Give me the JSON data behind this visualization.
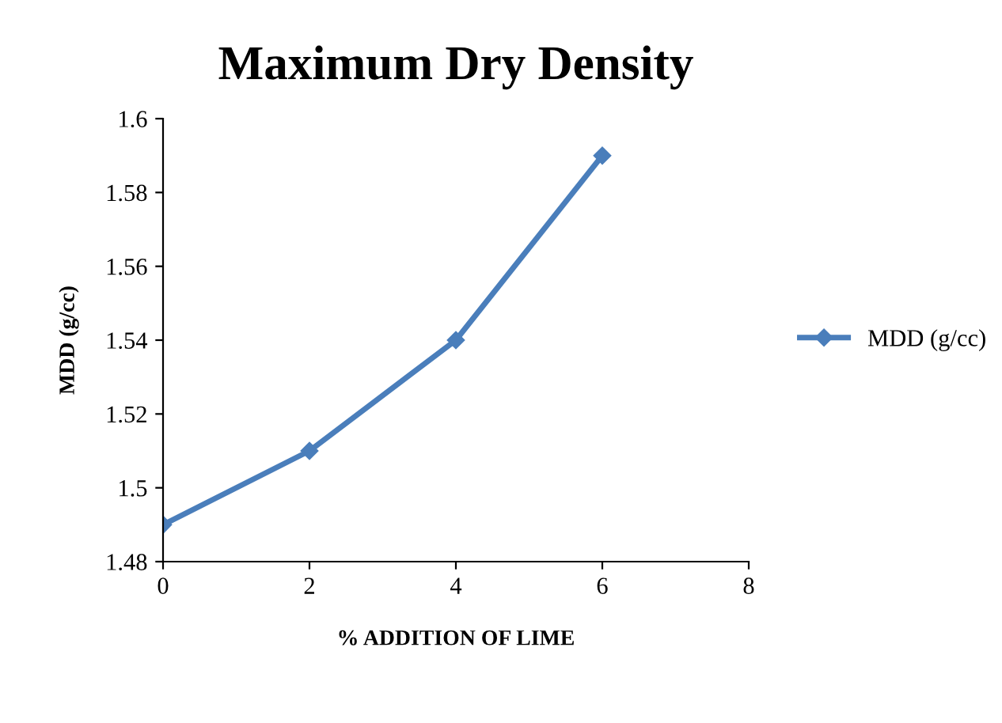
{
  "chart_data": {
    "type": "line",
    "title": "Maximum Dry Density",
    "xlabel": "% ADDITION OF LIME",
    "ylabel": "MDD (g/cc)",
    "x": [
      0,
      2,
      4,
      6
    ],
    "series": [
      {
        "name": "MDD (g/cc)",
        "color": "#4a7ebb",
        "values": [
          1.49,
          1.51,
          1.54,
          1.59
        ]
      }
    ],
    "xlim": [
      0,
      8
    ],
    "xticks": [
      0,
      2,
      4,
      6,
      8
    ],
    "ylim": [
      1.48,
      1.6
    ],
    "yticks": [
      {
        "value": 1.48,
        "label": "1.48"
      },
      {
        "value": 1.5,
        "label": "1.5"
      },
      {
        "value": 1.52,
        "label": "1.52"
      },
      {
        "value": 1.54,
        "label": "1.54"
      },
      {
        "value": 1.56,
        "label": "1.56"
      },
      {
        "value": 1.58,
        "label": "1.58"
      },
      {
        "value": 1.6,
        "label": "1.6"
      }
    ],
    "marker": "diamond",
    "line_style": "solid",
    "legend": "right",
    "grid": false
  }
}
